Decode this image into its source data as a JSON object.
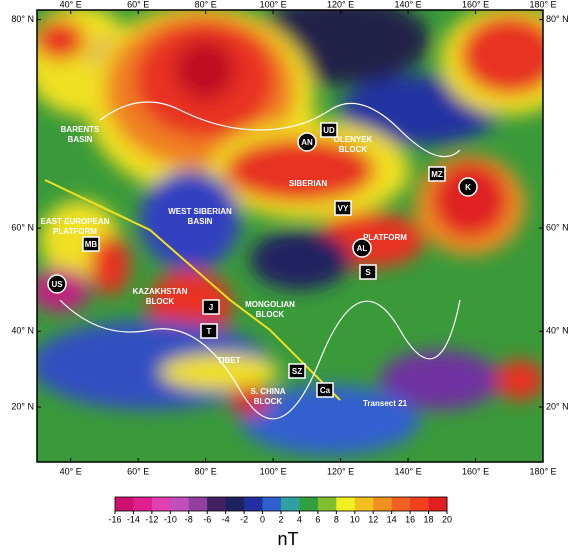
{
  "map": {
    "lon_range": [
      30,
      180
    ],
    "lat_range": [
      3.5,
      80.5
    ],
    "lon_ticks": [
      {
        "value": 40,
        "label": "40° E"
      },
      {
        "value": 60,
        "label": "60° E"
      },
      {
        "value": 80,
        "label": "80° E"
      },
      {
        "value": 100,
        "label": "100° E"
      },
      {
        "value": 120,
        "label": "120° E"
      },
      {
        "value": 140,
        "label": "140° E"
      },
      {
        "value": 160,
        "label": "160° E"
      },
      {
        "value": 180,
        "label": "180° E"
      }
    ],
    "lat_ticks": [
      {
        "value": 80,
        "label": "80° N"
      },
      {
        "value": 60,
        "label": "60° N"
      },
      {
        "value": 40,
        "label": "40° N"
      },
      {
        "value": 20,
        "label": "20° N"
      }
    ],
    "region_labels": [
      [
        "BARENTS",
        "BASIN"
      ],
      [
        "EAST EUROPEAN",
        "PLATFORM"
      ],
      [
        "WEST SIBERIAN",
        "BASIN"
      ],
      [
        "SIBERIAN"
      ],
      [
        "PLATFORM"
      ],
      [
        "OLENYEK",
        "BLOCK"
      ],
      [
        "KAZAKHSTAN",
        "BLOCK"
      ],
      [
        "MONGOLIAN",
        "BLOCK"
      ],
      [
        "TIBET"
      ],
      [
        "S. CHINA",
        "BLOCK"
      ],
      [
        "Transect 21"
      ]
    ],
    "circle_markers": [
      "AN",
      "AL",
      "K",
      "US"
    ],
    "box_markers": [
      "UD",
      "MZ",
      "VY",
      "S",
      "MB",
      "J",
      "T",
      "SZ",
      "Ca"
    ]
  },
  "colorbar": {
    "unit": "nT",
    "range": [
      -16,
      20
    ],
    "ticks": [
      -16,
      -14,
      -12,
      -10,
      -8,
      -6,
      -4,
      -2,
      0,
      2,
      4,
      6,
      8,
      10,
      12,
      14,
      16,
      18,
      20
    ],
    "colors": [
      "#d0106f",
      "#e0208f",
      "#e040b0",
      "#c050c0",
      "#9040a0",
      "#402060",
      "#202060",
      "#2030a0",
      "#3060d0",
      "#30a0a0",
      "#30a040",
      "#80c030",
      "#f0f020",
      "#f0c020",
      "#f09020",
      "#f06020",
      "#f04020",
      "#e02020"
    ]
  }
}
